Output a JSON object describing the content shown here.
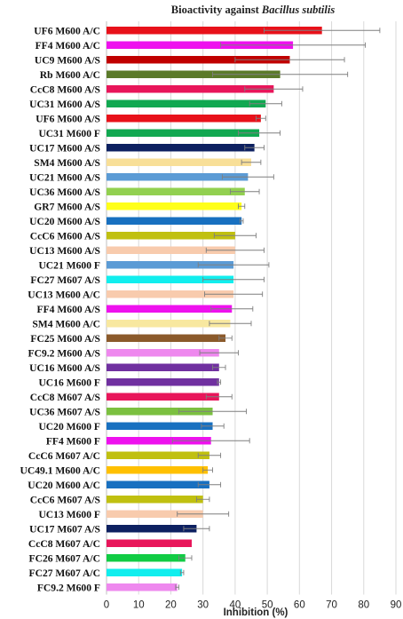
{
  "chart_data": {
    "type": "bar",
    "orientation": "horizontal",
    "title_prefix": "Bioactivity against ",
    "title_organism": "Bacillus subtilis",
    "xlabel": "Inhibition  (%)",
    "ylabel": "",
    "xlim": [
      0,
      90
    ],
    "xticks": [
      "0",
      "10",
      "20",
      "30",
      "40",
      "50",
      "60",
      "70",
      "80",
      "90"
    ],
    "grid": "vertical",
    "legend": "none",
    "categories": [
      "UF6 M600 A/C",
      "FF4 M600 A/C",
      "UC9 M600 A/S",
      "Rb M600 A/C",
      "CcC8 M600 A/S",
      "UC31 M600 A/S",
      "UF6 M600 A/S",
      "UC31 M600 F",
      "UC17 M600 A/S",
      "SM4 M600 A/S",
      "UC21 M600 A/S",
      "UC36 M600 A/S",
      "GR7 M600 A/S",
      "UC20 M600 A/S",
      "CcC6 M600 A/S",
      "UC13 M600 A/S",
      "UC21 M600 F",
      "FC27 M607 A/S",
      "UC13 M600 A/C",
      "FF4 M600 A/S",
      "SM4 M600 A/C",
      "FC25 M600 A/S",
      "FC9.2 M600 A/S",
      "UC16 M600 A/S",
      "UC16 M600 F",
      "CcC8 M607 A/S",
      "UC36 M607 A/S",
      "UC20 M600 F",
      "FF4 M600 F",
      "CcC6 M607 A/C",
      "UC49.1 M600 A/C",
      "UC20 M600 A/C",
      "CcC6 M607 A/S",
      "UC13 M600 F",
      "UC17 M607 A/S",
      "CcC8 M607 A/C",
      "FC26 M607 A/C",
      "FC27 M607 A/C",
      "FC9.2 M600 F"
    ],
    "values": [
      67,
      58,
      57,
      54,
      52,
      49.5,
      48,
      47.5,
      46,
      45,
      44,
      43,
      42,
      42,
      40,
      40,
      39.5,
      39.5,
      39.5,
      39,
      38.5,
      37,
      35,
      35,
      35,
      35,
      33,
      33,
      32.5,
      32,
      31.5,
      32,
      30,
      30,
      28,
      26.5,
      24.5,
      23.5,
      22
    ],
    "errors": [
      18,
      22.5,
      17,
      21,
      9,
      5,
      1.5,
      6.5,
      3,
      3,
      8,
      4.5,
      1,
      0.5,
      6.5,
      9,
      11,
      9.5,
      9,
      6.5,
      6.5,
      2,
      6,
      2,
      0.5,
      4,
      10.5,
      3.5,
      12,
      3.5,
      1.5,
      3.5,
      2,
      8,
      4,
      0,
      2,
      0.5,
      0.5
    ],
    "bar_colors": [
      "#e8111a",
      "#ee11ee",
      "#c00000",
      "#5b7a2a",
      "#e8165a",
      "#11a851",
      "#e8111a",
      "#11a851",
      "#0d2060",
      "#f8df98",
      "#5b9bd5",
      "#92d050",
      "#ffff1a",
      "#1870c0",
      "#c0c010",
      "#f8cbad",
      "#5b9bd5",
      "#11eeee",
      "#f8cbad",
      "#ee11ee",
      "#f8e8a0",
      "#8b5a2b",
      "#ee88ee",
      "#7030a0",
      "#7030a0",
      "#e8165a",
      "#7bc040",
      "#1870c0",
      "#ee11ee",
      "#c0c010",
      "#ffc000",
      "#1870c0",
      "#c0c010",
      "#f8cbad",
      "#0d2060",
      "#e8165a",
      "#11cc44",
      "#11eeee",
      "#ee88ee"
    ]
  }
}
